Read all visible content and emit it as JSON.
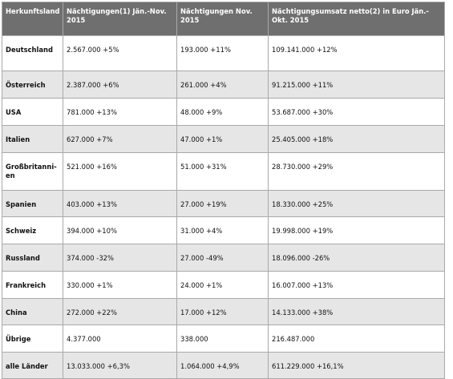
{
  "table": {
    "headers": [
      "Herkunftsland",
      "Nächtigungen(1) Jän.-Nov. 2015",
      "Nächtigungen Nov. 2015",
      "Nächtigungsumsatz netto(2) in Euro Jän.-Okt. 2015"
    ],
    "rows": [
      [
        "Deutschland",
        "2.567.000 +5%",
        "193.000 +11%",
        "109.141.000 +12%"
      ],
      [
        "Österreich",
        "2.387.000 +6%",
        "261.000 +4%",
        "91.215.000 +11%"
      ],
      [
        "USA",
        "781.000 +13%",
        "48.000 +9%",
        "53.687.000 +30%"
      ],
      [
        "Italien",
        "627.000 +7%",
        "47.000 +1%",
        "25.405.000 +18%"
      ],
      [
        "Großbritanni-en",
        "521.000 +16%",
        "51.000 +31%",
        "28.730.000 +29%"
      ],
      [
        "Spanien",
        "403.000 +13%",
        "27.000 +19%",
        "18.330.000 +25%"
      ],
      [
        "Schweiz",
        "394.000 +10%",
        "31.000 +4%",
        "19.998.000 +19%"
      ],
      [
        "Russland",
        "374.000 -32%",
        "27.000 -49%",
        "18.096.000 -26%"
      ],
      [
        "Frankreich",
        "330.000 +1%",
        "24.000 +1%",
        "16.007.000 +13%"
      ],
      [
        "China",
        "272.000 +22%",
        "17.000 +12%",
        "14.133.000 +38%"
      ],
      [
        "Übrige",
        "4.377.000",
        "338.000",
        "216.487.000"
      ],
      [
        "alle Länder",
        "13.033.000 +6,3%",
        "1.064.000 +4,9%",
        "611.229.000 +16,1%"
      ]
    ]
  }
}
